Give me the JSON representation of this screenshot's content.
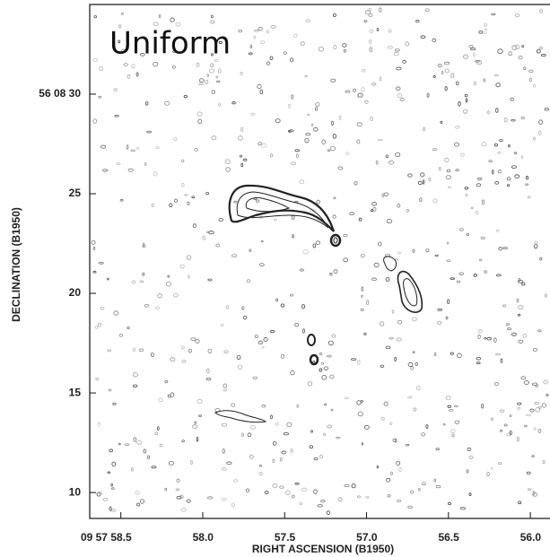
{
  "chart_data": {
    "type": "contour",
    "annotation": "Uniform",
    "xlabel": "RIGHT ASCENSION (B1950)",
    "ylabel": "DECLINATION (B1950)",
    "xlim": [
      58.69,
      55.88
    ],
    "xticks": [
      {
        "value": 58.5,
        "label": "09 57 58.5"
      },
      {
        "value": 58,
        "label": "58.0"
      },
      {
        "value": 57.5,
        "label": "57.5"
      },
      {
        "value": 57,
        "label": "57.0"
      },
      {
        "value": 56.5,
        "label": "56.5"
      },
      {
        "value": 56,
        "label": "56.0"
      }
    ],
    "ylim": [
      8.7,
      34.5
    ],
    "yticks": [
      {
        "value": 30,
        "label": "56 08 30"
      },
      25,
      20,
      15,
      10
    ]
  }
}
